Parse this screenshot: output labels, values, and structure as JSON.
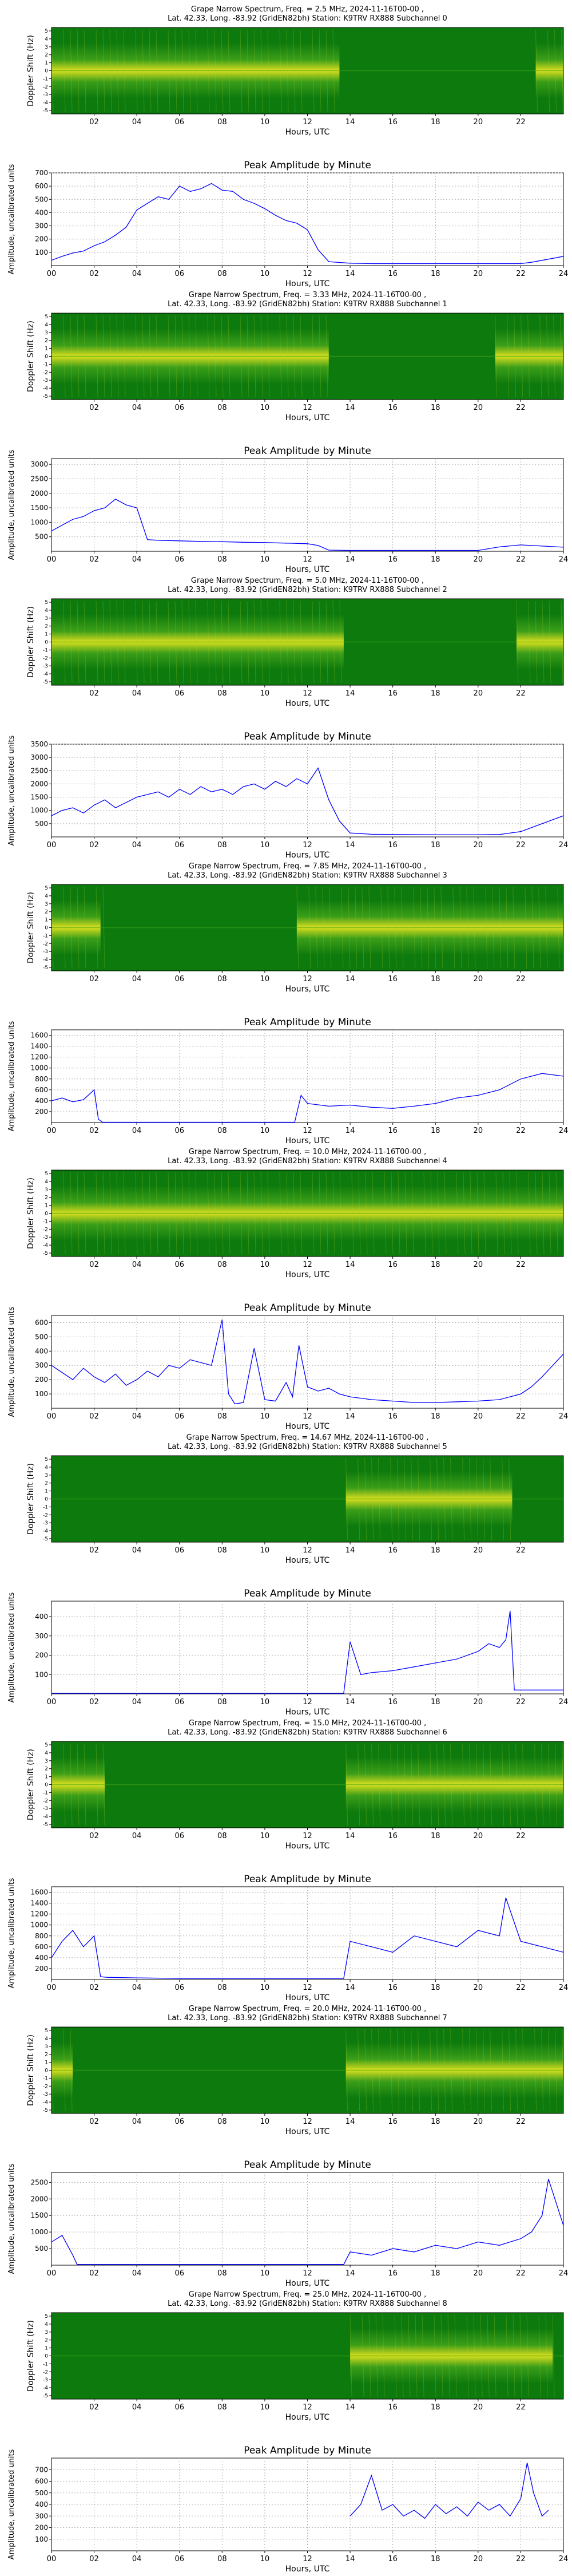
{
  "colors": {
    "line": "#0000ff",
    "spec_bg": "#0d7a0d",
    "spec_mid": "#3fa21a",
    "spec_hot": "#f2ee20",
    "spec_warm": "#b9d21f",
    "grid": "#b0b0b0"
  },
  "figure": {
    "spec_ylabel": "Doppler Shift (Hz)",
    "spec_xlabel": "Hours, UTC",
    "spec_ticks": [
      "02",
      "04",
      "06",
      "08",
      "10",
      "12",
      "14",
      "16",
      "18",
      "20",
      "22"
    ],
    "spec_yticks": [
      "5",
      "4",
      "3",
      "2",
      "1",
      "0",
      "-1",
      "-2",
      "-3",
      "-4",
      "-5"
    ],
    "amp_title": "Peak Amplitude by Minute",
    "amp_ylabel": "Amplitude, uncalibrated units",
    "amp_xlabel": "Hours, UTC",
    "amp_ticks": [
      "00",
      "02",
      "04",
      "06",
      "08",
      "10",
      "12",
      "14",
      "16",
      "18",
      "20",
      "22",
      "24"
    ]
  },
  "chart_data": [
    {
      "type": "heatmap",
      "title_line1": "Grape Narrow Spectrum, Freq. = 2.5 MHz, 2024-11-16T00-00 ,",
      "title_line2": "Lat. 42.33, Long. -83.92 (GridEN82bh) Station: K9TRV RX888 Subchannel 0",
      "xlabel": "Hours, UTC",
      "ylabel": "Doppler Shift (Hz)",
      "active_ranges": [
        [
          0,
          13.5
        ],
        [
          22.7,
          24
        ]
      ],
      "amplitude": {
        "type": "line",
        "title": "Peak Amplitude by Minute",
        "xlabel": "Hours, UTC",
        "ylabel": "Amplitude, uncalibrated units",
        "xlim": [
          0,
          24
        ],
        "ylim": [
          0,
          700
        ],
        "yticks": [
          "100",
          "200",
          "300",
          "400",
          "500",
          "600",
          "700"
        ],
        "x": [
          0,
          0.5,
          1,
          1.5,
          2,
          2.5,
          3,
          3.5,
          4,
          4.5,
          5,
          5.5,
          6,
          6.5,
          7,
          7.5,
          8,
          8.5,
          9,
          9.5,
          10,
          10.5,
          11,
          11.5,
          12,
          12.5,
          13,
          14,
          15,
          16,
          17,
          18,
          19,
          20,
          21,
          22,
          22.5,
          23,
          23.5,
          24
        ],
        "y": [
          40,
          70,
          95,
          110,
          150,
          180,
          230,
          290,
          420,
          470,
          520,
          500,
          600,
          560,
          580,
          620,
          570,
          560,
          500,
          470,
          430,
          380,
          340,
          320,
          270,
          120,
          30,
          18,
          15,
          15,
          15,
          15,
          15,
          15,
          15,
          15,
          25,
          40,
          55,
          70
        ]
      }
    },
    {
      "type": "heatmap",
      "title_line1": "Grape Narrow Spectrum, Freq. = 3.33 MHz, 2024-11-16T00-00 ,",
      "title_line2": "Lat. 42.33, Long. -83.92 (GridEN82bh) Station: K9TRV RX888 Subchannel 1",
      "xlabel": "Hours, UTC",
      "ylabel": "Doppler Shift (Hz)",
      "active_ranges": [
        [
          0,
          13
        ],
        [
          20.8,
          24
        ]
      ],
      "amplitude": {
        "type": "line",
        "title": "Peak Amplitude by Minute",
        "xlabel": "Hours, UTC",
        "ylabel": "Amplitude, uncalibrated units",
        "xlim": [
          0,
          24
        ],
        "ylim": [
          0,
          3200
        ],
        "yticks": [
          "500",
          "1000",
          "1500",
          "2000",
          "2500",
          "3000"
        ],
        "x": [
          0,
          0.5,
          1,
          1.5,
          2,
          2.5,
          3,
          3.5,
          4,
          4.5,
          5,
          6,
          7,
          8,
          9,
          10,
          11,
          12,
          12.5,
          13,
          14,
          16,
          18,
          20,
          21,
          22,
          23,
          24
        ],
        "y": [
          700,
          900,
          1100,
          1200,
          1400,
          1500,
          1800,
          1600,
          1500,
          400,
          380,
          360,
          340,
          330,
          310,
          300,
          280,
          260,
          200,
          40,
          30,
          30,
          30,
          30,
          150,
          220,
          180,
          140
        ]
      }
    },
    {
      "type": "heatmap",
      "title_line1": "Grape Narrow Spectrum, Freq. = 5.0 MHz, 2024-11-16T00-00 ,",
      "title_line2": "Lat. 42.33, Long. -83.92 (GridEN82bh) Station: K9TRV RX888 Subchannel 2",
      "xlabel": "Hours, UTC",
      "ylabel": "Doppler Shift (Hz)",
      "active_ranges": [
        [
          0,
          13.7
        ],
        [
          21.8,
          24
        ]
      ],
      "amplitude": {
        "type": "line",
        "title": "Peak Amplitude by Minute",
        "xlabel": "Hours, UTC",
        "ylabel": "Amplitude, uncalibrated units",
        "xlim": [
          0,
          24
        ],
        "ylim": [
          0,
          3500
        ],
        "yticks": [
          "500",
          "1000",
          "1500",
          "2000",
          "2500",
          "3000",
          "3500"
        ],
        "x": [
          0,
          0.5,
          1,
          1.5,
          2,
          2.5,
          3,
          3.5,
          4,
          4.5,
          5,
          5.5,
          6,
          6.5,
          7,
          7.5,
          8,
          8.5,
          9,
          9.5,
          10,
          10.5,
          11,
          11.5,
          12,
          12.5,
          13,
          13.5,
          14,
          15,
          16,
          18,
          20,
          21,
          22,
          23,
          24
        ],
        "y": [
          800,
          1000,
          1100,
          900,
          1200,
          1400,
          1100,
          1300,
          1500,
          1600,
          1700,
          1500,
          1800,
          1600,
          1900,
          1700,
          1800,
          1600,
          1900,
          2000,
          1800,
          2100,
          1900,
          2200,
          2000,
          2600,
          1400,
          600,
          150,
          100,
          90,
          80,
          80,
          90,
          200,
          500,
          800
        ]
      }
    },
    {
      "type": "heatmap",
      "title_line1": "Grape Narrow Spectrum, Freq. = 7.85 MHz, 2024-11-16T00-00 ,",
      "title_line2": "Lat. 42.33, Long. -83.92 (GridEN82bh) Station: K9TRV RX888 Subchannel 3",
      "xlabel": "Hours, UTC",
      "ylabel": "Doppler Shift (Hz)",
      "active_ranges": [
        [
          0,
          2.3
        ],
        [
          11.5,
          24
        ]
      ],
      "amplitude": {
        "type": "line",
        "title": "Peak Amplitude by Minute",
        "xlabel": "Hours, UTC",
        "ylabel": "Amplitude, uncalibrated units",
        "xlim": [
          0,
          24
        ],
        "ylim": [
          0,
          1700
        ],
        "yticks": [
          "200",
          "400",
          "600",
          "800",
          "1000",
          "1200",
          "1400",
          "1600"
        ],
        "x": [
          0,
          0.5,
          1,
          1.5,
          2,
          2.2,
          2.4,
          4,
          6,
          8,
          10,
          11.4,
          11.7,
          12,
          13,
          14,
          15,
          16,
          17,
          18,
          19,
          20,
          21,
          22,
          23,
          24
        ],
        "y": [
          400,
          450,
          380,
          420,
          600,
          60,
          5,
          5,
          5,
          5,
          5,
          5,
          500,
          350,
          300,
          320,
          280,
          260,
          300,
          350,
          450,
          500,
          600,
          800,
          900,
          850
        ]
      }
    },
    {
      "type": "heatmap",
      "title_line1": "Grape Narrow Spectrum, Freq. = 10.0 MHz, 2024-11-16T00-00 ,",
      "title_line2": "Lat. 42.33, Long. -83.92 (GridEN82bh) Station: K9TRV RX888 Subchannel 4",
      "xlabel": "Hours, UTC",
      "ylabel": "Doppler Shift (Hz)",
      "active_ranges": [
        [
          0,
          24
        ]
      ],
      "amplitude": {
        "type": "line",
        "title": "Peak Amplitude by Minute",
        "xlabel": "Hours, UTC",
        "ylabel": "Amplitude, uncalibrated units",
        "xlim": [
          0,
          24
        ],
        "ylim": [
          0,
          650
        ],
        "yticks": [
          "100",
          "200",
          "300",
          "400",
          "500",
          "600"
        ],
        "x": [
          0,
          0.5,
          1,
          1.5,
          2,
          2.5,
          3,
          3.5,
          4,
          4.5,
          5,
          5.5,
          6,
          6.5,
          7,
          7.5,
          8,
          8.3,
          8.6,
          9,
          9.5,
          10,
          10.5,
          11,
          11.3,
          11.6,
          12,
          12.5,
          13,
          13.5,
          14,
          15,
          16,
          17,
          18,
          19,
          20,
          21,
          22,
          22.5,
          23,
          23.5,
          24
        ],
        "y": [
          300,
          250,
          200,
          280,
          220,
          180,
          240,
          160,
          200,
          260,
          220,
          300,
          280,
          340,
          320,
          300,
          620,
          100,
          30,
          40,
          420,
          60,
          50,
          180,
          80,
          440,
          150,
          120,
          140,
          100,
          80,
          60,
          50,
          40,
          40,
          45,
          50,
          60,
          100,
          150,
          220,
          300,
          380
        ]
      }
    },
    {
      "type": "heatmap",
      "title_line1": "Grape Narrow Spectrum, Freq. = 14.67 MHz, 2024-11-16T00-00 ,",
      "title_line2": "Lat. 42.33, Long. -83.92 (GridEN82bh) Station: K9TRV RX888 Subchannel 5",
      "xlabel": "Hours, UTC",
      "ylabel": "Doppler Shift (Hz)",
      "active_ranges": [
        [
          13.8,
          21.6
        ]
      ],
      "amplitude": {
        "type": "line",
        "title": "Peak Amplitude by Minute",
        "xlabel": "Hours, UTC",
        "ylabel": "Amplitude, uncalibrated units",
        "xlim": [
          0,
          24
        ],
        "ylim": [
          0,
          480
        ],
        "yticks": [
          "100",
          "200",
          "300",
          "400"
        ],
        "x": [
          0,
          4,
          8,
          12,
          13.7,
          14,
          14.5,
          15,
          16,
          17,
          18,
          19,
          20,
          20.5,
          21,
          21.3,
          21.5,
          21.7,
          22,
          23,
          24
        ],
        "y": [
          3,
          3,
          3,
          3,
          3,
          270,
          100,
          110,
          120,
          140,
          160,
          180,
          220,
          260,
          240,
          280,
          430,
          20,
          20,
          20,
          20
        ]
      }
    },
    {
      "type": "heatmap",
      "title_line1": "Grape Narrow Spectrum, Freq. = 15.0 MHz, 2024-11-16T00-00 ,",
      "title_line2": "Lat. 42.33, Long. -83.92 (GridEN82bh) Station: K9TRV RX888 Subchannel 6",
      "xlabel": "Hours, UTC",
      "ylabel": "Doppler Shift (Hz)",
      "active_ranges": [
        [
          0,
          2.5
        ],
        [
          13.8,
          24
        ]
      ],
      "amplitude": {
        "type": "line",
        "title": "Peak Amplitude by Minute",
        "xlabel": "Hours, UTC",
        "ylabel": "Amplitude, uncalibrated units",
        "xlim": [
          0,
          24
        ],
        "ylim": [
          0,
          1700
        ],
        "yticks": [
          "200",
          "400",
          "600",
          "800",
          "1000",
          "1200",
          "1400",
          "1600"
        ],
        "x": [
          0,
          0.5,
          1,
          1.5,
          2,
          2.3,
          2.6,
          4,
          6,
          8,
          10,
          12,
          13.7,
          14,
          15,
          16,
          17,
          18,
          19,
          20,
          21,
          21.3,
          22,
          23,
          24
        ],
        "y": [
          400,
          700,
          900,
          600,
          800,
          50,
          40,
          30,
          20,
          20,
          20,
          20,
          20,
          700,
          600,
          500,
          800,
          700,
          600,
          900,
          800,
          1500,
          700,
          600,
          500
        ]
      }
    },
    {
      "type": "heatmap",
      "title_line1": "Grape Narrow Spectrum, Freq. = 20.0 MHz, 2024-11-16T00-00 ,",
      "title_line2": "Lat. 42.33, Long. -83.92 (GridEN82bh) Station: K9TRV RX888 Subchannel 7",
      "xlabel": "Hours, UTC",
      "ylabel": "Doppler Shift (Hz)",
      "active_ranges": [
        [
          0,
          1
        ],
        [
          13.8,
          24
        ]
      ],
      "amplitude": {
        "type": "line",
        "title": "Peak Amplitude by Minute",
        "xlabel": "Hours, UTC",
        "ylabel": "Amplitude, uncalibrated units",
        "xlim": [
          0,
          24
        ],
        "ylim": [
          0,
          2800
        ],
        "yticks": [
          "500",
          "1000",
          "1500",
          "2000",
          "2500"
        ],
        "x": [
          0,
          0.5,
          1,
          1.2,
          4,
          8,
          12,
          13.7,
          14,
          15,
          16,
          17,
          18,
          19,
          20,
          21,
          22,
          22.5,
          23,
          23.3,
          23.6,
          24
        ],
        "y": [
          700,
          900,
          300,
          20,
          20,
          20,
          20,
          20,
          400,
          300,
          500,
          400,
          600,
          500,
          700,
          600,
          800,
          1000,
          1500,
          2600,
          2000,
          1200
        ]
      }
    },
    {
      "type": "heatmap",
      "title_line1": "Grape Narrow Spectrum, Freq. = 25.0 MHz, 2024-11-16T00-00 ,",
      "title_line2": "Lat. 42.33, Long. -83.92 (GridEN82bh) Station: K9TRV RX888 Subchannel 8",
      "xlabel": "Hours, UTC",
      "ylabel": "Doppler Shift (Hz)",
      "active_ranges": [
        [
          14,
          23.5
        ]
      ],
      "amplitude": {
        "type": "line",
        "title": "Peak Amplitude by Minute",
        "xlabel": "Hours, UTC",
        "ylabel": "Amplitude, uncalibrated units",
        "xlim": [
          0,
          24
        ],
        "ylim": [
          0,
          800
        ],
        "yticks": [
          "100",
          "200",
          "300",
          "400",
          "500",
          "600",
          "700"
        ],
        "x": [
          14,
          14.5,
          15,
          15.5,
          16,
          16.5,
          17,
          17.5,
          18,
          18.5,
          19,
          19.5,
          20,
          20.5,
          21,
          21.5,
          22,
          22.3,
          22.6,
          23,
          23.3
        ],
        "y": [
          300,
          400,
          650,
          350,
          400,
          300,
          350,
          280,
          400,
          320,
          380,
          300,
          420,
          350,
          400,
          300,
          450,
          760,
          500,
          300,
          350
        ]
      }
    }
  ]
}
